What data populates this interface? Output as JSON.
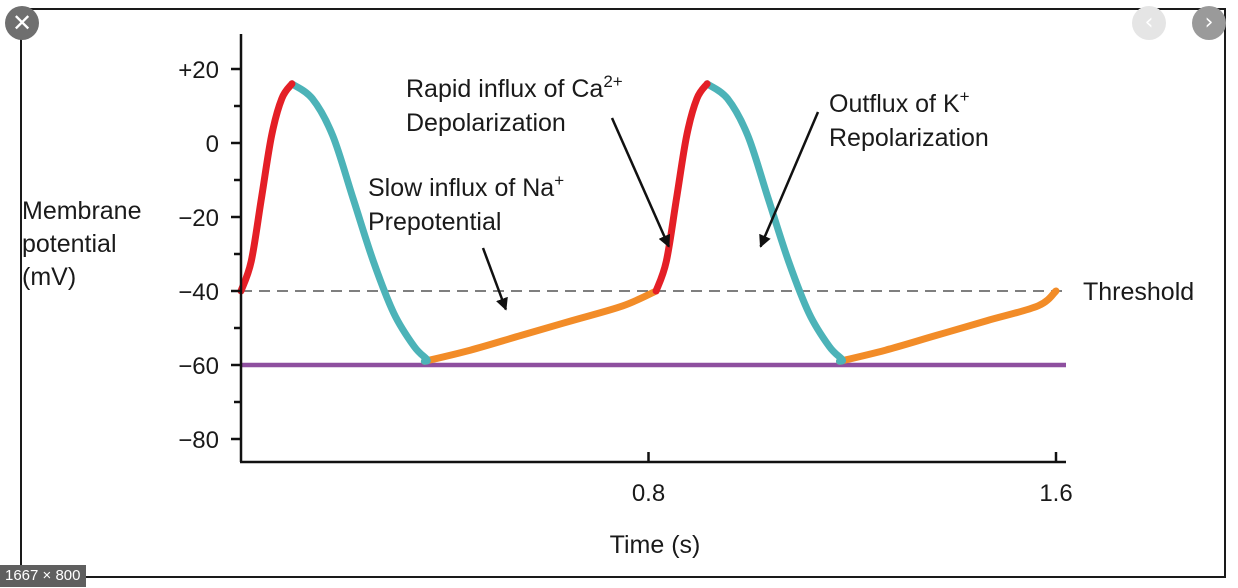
{
  "viewer": {
    "close_icon": "close-icon",
    "prev_icon": "chevron-left-icon",
    "next_icon": "chevron-right-icon",
    "dimensions_label": "1667 × 800"
  },
  "chart_data": {
    "type": "line",
    "title": "",
    "xlabel": "Time (s)",
    "ylabel": [
      "Membrane",
      "potential",
      "(mV)"
    ],
    "xlim": [
      0,
      1.6
    ],
    "ylim": [
      -85,
      28
    ],
    "xticks": [
      0.8,
      1.6
    ],
    "xtick_labels": [
      "0.8",
      "1.6"
    ],
    "yticks": [
      20,
      0,
      -20,
      -40,
      -60,
      -80
    ],
    "ytick_labels": [
      "+20",
      "0",
      "−20",
      "−40",
      "−60",
      "−80"
    ],
    "grid": false,
    "series": [
      {
        "name": "Depolarization (rapid influx of Ca2+)",
        "color": "#e41f26",
        "segments": [
          [
            [
              0.0,
              -40
            ],
            [
              0.02,
              -32
            ],
            [
              0.04,
              -15
            ],
            [
              0.06,
              2
            ],
            [
              0.08,
              12
            ],
            [
              0.1,
              16
            ]
          ],
          [
            [
              0.815,
              -40
            ],
            [
              0.835,
              -32
            ],
            [
              0.855,
              -15
            ],
            [
              0.875,
              2
            ],
            [
              0.895,
              12
            ],
            [
              0.915,
              16
            ]
          ]
        ]
      },
      {
        "name": "Repolarization (outflux of K+)",
        "color": "#4cb3b8",
        "segments": [
          [
            [
              0.1,
              16
            ],
            [
              0.14,
              12
            ],
            [
              0.18,
              2
            ],
            [
              0.22,
              -15
            ],
            [
              0.26,
              -32
            ],
            [
              0.3,
              -46
            ],
            [
              0.34,
              -55
            ],
            [
              0.365,
              -58.5
            ],
            [
              0.36,
              -59
            ]
          ],
          [
            [
              0.915,
              16
            ],
            [
              0.955,
              12
            ],
            [
              0.995,
              2
            ],
            [
              1.035,
              -15
            ],
            [
              1.075,
              -32
            ],
            [
              1.115,
              -46
            ],
            [
              1.155,
              -55
            ],
            [
              1.18,
              -58.5
            ],
            [
              1.175,
              -59
            ]
          ]
        ]
      },
      {
        "name": "Prepotential (slow influx of Na+)",
        "color": "#f28c28",
        "segments": [
          [
            [
              0.36,
              -59
            ],
            [
              0.45,
              -56
            ],
            [
              0.55,
              -52
            ],
            [
              0.65,
              -48
            ],
            [
              0.75,
              -44
            ],
            [
              0.815,
              -40
            ]
          ],
          [
            [
              1.175,
              -59
            ],
            [
              1.265,
              -56
            ],
            [
              1.365,
              -52
            ],
            [
              1.465,
              -48
            ],
            [
              1.565,
              -44
            ],
            [
              1.6,
              -40
            ]
          ]
        ]
      }
    ],
    "reference_lines": [
      {
        "name": "Threshold",
        "y": -40,
        "style": "dashed",
        "color": "#555555",
        "label": "Threshold"
      },
      {
        "name": "Baseline",
        "y": -60,
        "style": "solid",
        "color": "#8e4f9f",
        "label": ""
      }
    ],
    "annotations": [
      {
        "id": "prepotential",
        "lines": [
          "Slow influx of Na",
          "Prepotential"
        ],
        "superscript": "+",
        "arrow_to": [
          0.52,
          -45
        ]
      },
      {
        "id": "depolarization",
        "lines": [
          "Rapid influx of Ca",
          "Depolarization"
        ],
        "superscript": "2+",
        "arrow_to": [
          0.84,
          -28
        ]
      },
      {
        "id": "repolarization",
        "lines": [
          "Outflux of K",
          "Repolarization"
        ],
        "superscript": "+",
        "arrow_to": [
          1.02,
          -28
        ]
      }
    ]
  }
}
